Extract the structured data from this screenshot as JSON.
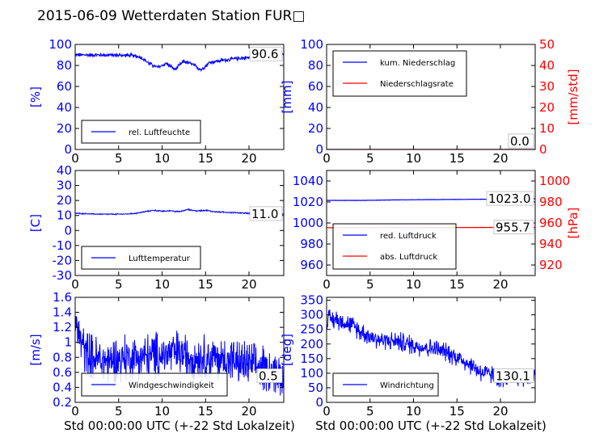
{
  "title": "2015-06-09 Wetterdaten Station FUR□",
  "xlabel": "Std 00:00:00 UTC (+-22 Std Lokalzeit)",
  "chart_data": [
    {
      "type": "line",
      "xlim": [
        0,
        24
      ],
      "xticks": [
        0,
        5,
        10,
        15,
        20
      ],
      "ylim": [
        0,
        100
      ],
      "yticks": [
        0,
        20,
        40,
        60,
        80,
        100
      ],
      "ylabel": "[%]",
      "ylabel_color": "#0000ff",
      "value_label": "90.6",
      "legend_position": "lower-left",
      "series": [
        {
          "name": "rel. Luftfeuchte",
          "color": "#0000ff",
          "axis": "left",
          "noise": 2,
          "x": [
            0,
            3,
            6.5,
            7.5,
            8.5,
            9.5,
            10.5,
            11.5,
            12.5,
            13.5,
            14.5,
            15.5,
            17,
            19,
            21,
            22.5,
            24
          ],
          "values": [
            90,
            90,
            89.5,
            88,
            82,
            78,
            82,
            76,
            84,
            81,
            76,
            83,
            85,
            87,
            88,
            89,
            90.6
          ]
        }
      ]
    },
    {
      "type": "line",
      "xlim": [
        0,
        24
      ],
      "xticks": [
        0,
        5,
        10,
        15,
        20
      ],
      "ylim": [
        0,
        100
      ],
      "yticks": [
        0,
        20,
        40,
        60,
        80,
        100
      ],
      "ylabel": "[mm]",
      "ylabel_color": "#0000ff",
      "ylim_right": [
        0,
        50
      ],
      "yticks_right": [
        0,
        10,
        20,
        30,
        40,
        50
      ],
      "ylabel_right": "[mm/std]",
      "ylabel_right_color": "#ff0000",
      "value_label": "0.0",
      "value_label_right": "0.0",
      "legend_position": "upper-left",
      "series": [
        {
          "name": "kum. Niederschlag",
          "color": "#0000ff",
          "axis": "left",
          "noise": 0,
          "x": [
            0,
            24
          ],
          "values": [
            0,
            0
          ]
        },
        {
          "name": "Niederschlagsrate",
          "color": "#ff0000",
          "axis": "right",
          "noise": 0,
          "x": [
            0,
            24
          ],
          "values": [
            0,
            0
          ]
        }
      ]
    },
    {
      "type": "line",
      "xlim": [
        0,
        24
      ],
      "xticks": [
        0,
        5,
        10,
        15,
        20
      ],
      "ylim": [
        -30,
        40
      ],
      "yticks": [
        -30,
        -20,
        -10,
        0,
        10,
        20,
        30,
        40
      ],
      "ylabel": "[C]",
      "ylabel_color": "#0000ff",
      "value_label": "11.0",
      "legend_position": "lower-left",
      "series": [
        {
          "name": "Lufttemperatur",
          "color": "#0000ff",
          "axis": "left",
          "noise": 0.4,
          "x": [
            0,
            2,
            4,
            6,
            7,
            8,
            9,
            10,
            11,
            12,
            13,
            14,
            15,
            16,
            18,
            20,
            22,
            24
          ],
          "values": [
            11.5,
            11,
            10.8,
            11,
            11.5,
            12.5,
            13.5,
            12.8,
            13.2,
            12.5,
            14,
            13,
            13.5,
            12.5,
            12,
            11.5,
            11.2,
            11.0
          ]
        }
      ]
    },
    {
      "type": "line",
      "xlim": [
        0,
        24
      ],
      "xticks": [
        0,
        5,
        10,
        15,
        20
      ],
      "ylim": [
        950,
        1050
      ],
      "yticks": [
        960,
        980,
        1000,
        1020,
        1040
      ],
      "ylabel_right": "[hPa]",
      "ylabel_right_color": "#ff0000",
      "ylim_right": [
        910,
        1010
      ],
      "yticks_right": [
        920,
        940,
        960,
        980,
        1000
      ],
      "value_label": "1023.0",
      "value_label_right": "955.7",
      "legend_position": "lower-left",
      "series": [
        {
          "name": "red. Luftdruck",
          "color": "#0000ff",
          "axis": "left",
          "noise": 0.15,
          "x": [
            0,
            4,
            8,
            12,
            16,
            20,
            24
          ],
          "values": [
            1021.5,
            1021.5,
            1022,
            1022.3,
            1022.5,
            1022.8,
            1023.0
          ]
        },
        {
          "name": "abs. Luftdruck",
          "color": "#ff0000",
          "axis": "right",
          "noise": 0.1,
          "x": [
            0,
            4,
            8,
            12,
            16,
            20,
            24
          ],
          "values": [
            955.5,
            955.5,
            955.6,
            955.7,
            955.7,
            955.8,
            955.7
          ]
        }
      ]
    },
    {
      "type": "line",
      "xlim": [
        0,
        24
      ],
      "xticks": [
        0,
        5,
        10,
        15,
        20
      ],
      "ylim": [
        0.2,
        1.6
      ],
      "yticks": [
        0.2,
        0.4,
        0.6,
        0.8,
        1.0,
        1.2,
        1.4,
        1.6
      ],
      "ylabel": "[m/s]",
      "ylabel_color": "#0000ff",
      "value_label": "0.5",
      "legend_position": "lower-left",
      "series": [
        {
          "name": "Windgeschwindigkeit",
          "color": "#0000ff",
          "axis": "left",
          "noise": 0.32,
          "x": [
            0,
            1,
            2,
            3,
            4,
            6,
            8,
            10,
            12,
            14,
            16,
            18,
            20,
            22,
            24
          ],
          "values": [
            1.25,
            0.9,
            0.8,
            0.75,
            0.75,
            0.8,
            0.8,
            0.85,
            0.85,
            0.8,
            0.8,
            0.75,
            0.7,
            0.65,
            0.55
          ]
        }
      ]
    },
    {
      "type": "line",
      "xlim": [
        0,
        24
      ],
      "xticks": [
        0,
        5,
        10,
        15,
        20
      ],
      "ylim": [
        0,
        360
      ],
      "yticks": [
        0,
        50,
        100,
        150,
        200,
        250,
        300,
        350
      ],
      "ylabel": "[deg]",
      "ylabel_color": "#0000ff",
      "value_label": "130.1",
      "legend_position": "lower-left",
      "series": [
        {
          "name": "Windrichtung",
          "color": "#0000ff",
          "axis": "left",
          "noise": 35,
          "x": [
            0,
            2,
            4,
            6,
            8,
            10,
            12,
            14,
            16,
            17,
            18,
            20,
            22,
            24
          ],
          "values": [
            285,
            280,
            240,
            215,
            210,
            195,
            185,
            170,
            140,
            120,
            100,
            85,
            85,
            90
          ]
        }
      ]
    }
  ]
}
